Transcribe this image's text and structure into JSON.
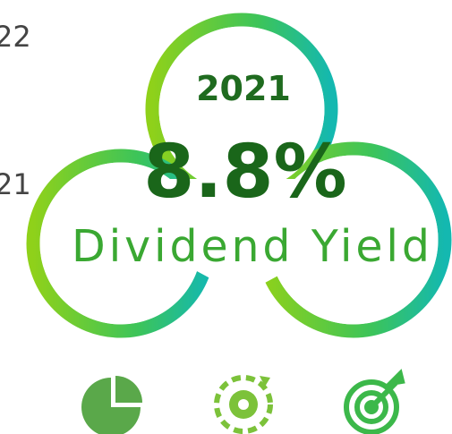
{
  "side_labels": [
    "22",
    "21"
  ],
  "card": {
    "year": "2021",
    "value": "8.8%",
    "caption": "Dividend Yield"
  }
}
